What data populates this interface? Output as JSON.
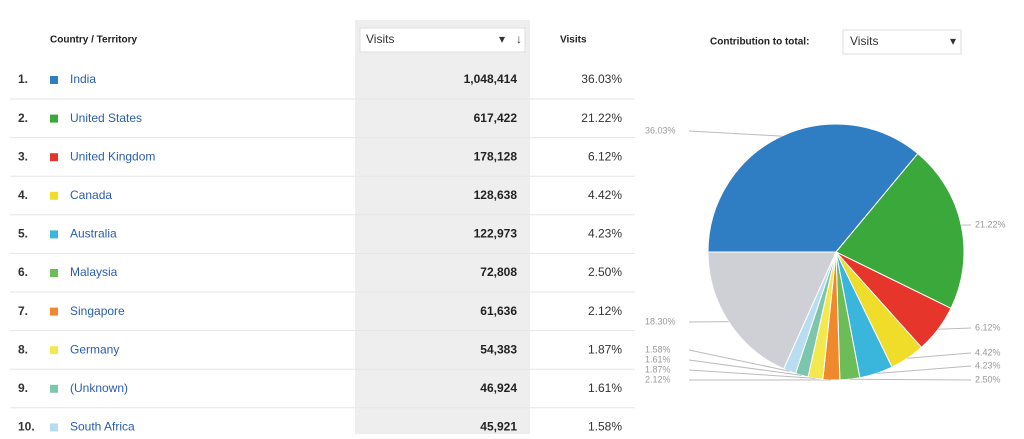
{
  "header": {
    "country": "Country / Territory",
    "visits_select": "Visits",
    "sort_icon": "↓",
    "visits_percent": "Visits",
    "contribution": "Contribution to total:",
    "contribution_select": "Visits"
  },
  "table": {
    "rows": [
      {
        "rank": "1.",
        "country": "India",
        "visits": "1,048,414",
        "percent": "36.03%",
        "color": "#2f7ec4"
      },
      {
        "rank": "2.",
        "country": "United States",
        "visits": "617,422",
        "percent": "21.22%",
        "color": "#3aa83a"
      },
      {
        "rank": "3.",
        "country": "United Kingdom",
        "visits": "178,128",
        "percent": "6.12%",
        "color": "#e6352b"
      },
      {
        "rank": "4.",
        "country": "Canada",
        "visits": "128,638",
        "percent": "4.42%",
        "color": "#f0dd2a"
      },
      {
        "rank": "5.",
        "country": "Australia",
        "visits": "122,973",
        "percent": "4.23%",
        "color": "#3ab5dc"
      },
      {
        "rank": "6.",
        "country": "Malaysia",
        "visits": "72,808",
        "percent": "2.50%",
        "color": "#6cbc58"
      },
      {
        "rank": "7.",
        "country": "Singapore",
        "visits": "61,636",
        "percent": "2.12%",
        "color": "#f0892d"
      },
      {
        "rank": "8.",
        "country": "Germany",
        "visits": "54,383",
        "percent": "1.87%",
        "color": "#f3e84e"
      },
      {
        "rank": "9.",
        "country": "(Unknown)",
        "visits": "46,924",
        "percent": "1.61%",
        "color": "#7cc6ad"
      },
      {
        "rank": "10.",
        "country": "South Africa",
        "visits": "45,921",
        "percent": "1.58%",
        "color": "#b8ddf0"
      }
    ]
  },
  "pie": {
    "values": [
      36.03,
      21.22,
      6.12,
      4.42,
      4.23,
      2.5,
      2.12,
      1.87,
      1.61,
      1.58,
      18.3
    ],
    "value_labels": [
      "36.03%",
      "21.22%",
      "6.12%",
      "4.42%",
      "4.23%",
      "2.50%",
      "2.12%",
      "1.87%",
      "1.61%",
      "1.58%",
      "18.30%"
    ],
    "other_color": "#cfcfd6"
  }
}
